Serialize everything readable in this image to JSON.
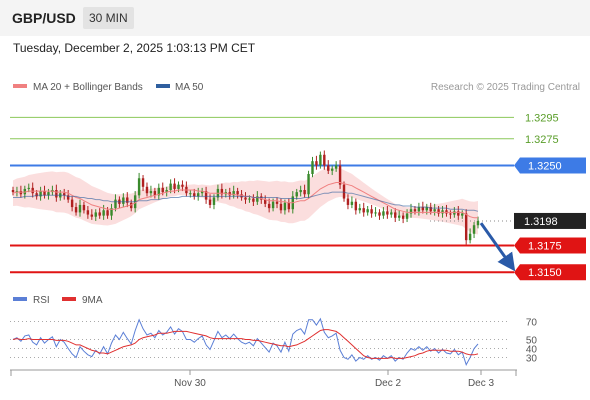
{
  "header": {
    "pair": "GBP/USD",
    "timeframe": "30 MIN"
  },
  "datetime": "Tuesday, December 2, 2025 1:03:13 PM CET",
  "legend": {
    "main": [
      {
        "label": "MA 20 + Bollinger Bands",
        "color": "#f08080"
      },
      {
        "label": "MA 50",
        "color": "#2f5f9f"
      }
    ],
    "rsi": [
      {
        "label": "RSI",
        "color": "#5b7fd6"
      },
      {
        "label": "9MA",
        "color": "#e03030"
      }
    ]
  },
  "credit": "Research © 2025 Trading Central",
  "chart_data": [
    {
      "type": "candlestick",
      "ylim": [
        1.3138,
        1.3316
      ],
      "levels": [
        {
          "label": "1.3295",
          "value": 1.3295,
          "color": "#8cc85a",
          "style": "resistance"
        },
        {
          "label": "1.3275",
          "value": 1.3275,
          "color": "#8cc85a",
          "style": "resistance"
        },
        {
          "label": "1.3250",
          "value": 1.325,
          "color": "#3d7be6",
          "style": "pivot"
        },
        {
          "label": "1.3198",
          "value": 1.3198,
          "color": "#222222",
          "style": "last"
        },
        {
          "label": "1.3175",
          "value": 1.3175,
          "color": "#e01414",
          "style": "support"
        },
        {
          "label": "1.3150",
          "value": 1.315,
          "color": "#e01414",
          "style": "support"
        }
      ],
      "x_ticks": [
        "Nov 30",
        "Dec 2",
        "Dec 3"
      ],
      "forecast": {
        "from": 1.3196,
        "to": 1.3152,
        "direction": "down"
      },
      "closes": [
        1.3225,
        1.3226,
        1.3223,
        1.3228,
        1.3229,
        1.3224,
        1.3221,
        1.3226,
        1.3222,
        1.3225,
        1.3227,
        1.322,
        1.3224,
        1.3222,
        1.3218,
        1.3211,
        1.3206,
        1.3213,
        1.3208,
        1.3204,
        1.3202,
        1.3206,
        1.3203,
        1.3208,
        1.3203,
        1.321,
        1.3218,
        1.3214,
        1.322,
        1.3215,
        1.321,
        1.3222,
        1.3238,
        1.323,
        1.3224,
        1.3226,
        1.3222,
        1.3229,
        1.3225,
        1.3227,
        1.3233,
        1.3228,
        1.3232,
        1.323,
        1.3224,
        1.3224,
        1.3221,
        1.3224,
        1.3226,
        1.3218,
        1.3213,
        1.322,
        1.3228,
        1.3223,
        1.3225,
        1.3222,
        1.3226,
        1.3223,
        1.322,
        1.3218,
        1.3219,
        1.3216,
        1.3221,
        1.3218,
        1.3214,
        1.321,
        1.3216,
        1.3214,
        1.3208,
        1.3215,
        1.3209,
        1.3221,
        1.3225,
        1.3227,
        1.3223,
        1.3242,
        1.3254,
        1.325,
        1.326,
        1.325,
        1.3245,
        1.3247,
        1.325,
        1.3232,
        1.3219,
        1.3213,
        1.3216,
        1.3208,
        1.321,
        1.3206,
        1.3209,
        1.3205,
        1.3206,
        1.3203,
        1.3207,
        1.3204,
        1.3206,
        1.3201,
        1.3203,
        1.32,
        1.3205,
        1.3209,
        1.3207,
        1.3211,
        1.3208,
        1.3211,
        1.3207,
        1.3209,
        1.3205,
        1.3208,
        1.3205,
        1.3204,
        1.3207,
        1.3203,
        1.3205,
        1.318,
        1.3186,
        1.3194,
        1.3198
      ],
      "ma20": [
        1.3224,
        1.3225,
        1.3225,
        1.3225,
        1.3226,
        1.3226,
        1.3226,
        1.3226,
        1.3226,
        1.3226,
        1.3226,
        1.3225,
        1.3225,
        1.3225,
        1.3224,
        1.3222,
        1.322,
        1.3219,
        1.3217,
        1.3215,
        1.3213,
        1.3212,
        1.3211,
        1.321,
        1.3209,
        1.3209,
        1.3209,
        1.321,
        1.3211,
        1.3212,
        1.3213,
        1.3215,
        1.3218,
        1.3219,
        1.322,
        1.3221,
        1.3222,
        1.3223,
        1.3224,
        1.3225,
        1.3226,
        1.3226,
        1.3227,
        1.3227,
        1.3227,
        1.3227,
        1.3227,
        1.3226,
        1.3226,
        1.3225,
        1.3224,
        1.3224,
        1.3224,
        1.3224,
        1.3224,
        1.3223,
        1.3223,
        1.3222,
        1.3222,
        1.3221,
        1.3221,
        1.322,
        1.322,
        1.3219,
        1.3218,
        1.3217,
        1.3217,
        1.3217,
        1.3216,
        1.3216,
        1.3215,
        1.3215,
        1.3216,
        1.3217,
        1.3217,
        1.3219,
        1.3222,
        1.3225,
        1.3228,
        1.323,
        1.3232,
        1.3233,
        1.3234,
        1.3234,
        1.3233,
        1.3232,
        1.3231,
        1.3229,
        1.3227,
        1.3225,
        1.3223,
        1.3221,
        1.3219,
        1.3217,
        1.3215,
        1.3213,
        1.3211,
        1.3209,
        1.3208,
        1.3207,
        1.3206,
        1.3206,
        1.3206,
        1.3206,
        1.3206,
        1.3206,
        1.3206,
        1.3206,
        1.3206,
        1.3206,
        1.3206,
        1.3206,
        1.3206,
        1.3206,
        1.3206,
        1.3204,
        1.3202,
        1.3201,
        1.3201
      ],
      "bb_width": 0.0012,
      "ma50": [
        1.322,
        1.322,
        1.322,
        1.3221,
        1.3221,
        1.3221,
        1.3222,
        1.3222,
        1.3222,
        1.3222,
        1.3222,
        1.3222,
        1.3222,
        1.3222,
        1.3221,
        1.3221,
        1.3221,
        1.322,
        1.322,
        1.3219,
        1.3219,
        1.3218,
        1.3218,
        1.3217,
        1.3217,
        1.3216,
        1.3216,
        1.3216,
        1.3216,
        1.3216,
        1.3216,
        1.3216,
        1.3217,
        1.3217,
        1.3217,
        1.3218,
        1.3218,
        1.3218,
        1.3219,
        1.3219,
        1.322,
        1.322,
        1.322,
        1.3221,
        1.3221,
        1.3221,
        1.3221,
        1.3221,
        1.3221,
        1.3221,
        1.3221,
        1.3221,
        1.3221,
        1.3221,
        1.3221,
        1.3221,
        1.3221,
        1.3221,
        1.3221,
        1.3221,
        1.3221,
        1.322,
        1.322,
        1.322,
        1.322,
        1.322,
        1.322,
        1.322,
        1.3219,
        1.3219,
        1.3219,
        1.3219,
        1.3219,
        1.3219,
        1.322,
        1.322,
        1.3221,
        1.3222,
        1.3223,
        1.3224,
        1.3224,
        1.3225,
        1.3225,
        1.3225,
        1.3225,
        1.3224,
        1.3224,
        1.3223,
        1.3222,
        1.3221,
        1.322,
        1.3219,
        1.3218,
        1.3217,
        1.3216,
        1.3215,
        1.3214,
        1.3213,
        1.3213,
        1.3212,
        1.3212,
        1.3212,
        1.3211,
        1.3211,
        1.3211,
        1.3211,
        1.321,
        1.321,
        1.321,
        1.321,
        1.321,
        1.3209,
        1.3209,
        1.3209,
        1.3209,
        1.3208,
        1.3208,
        1.3208,
        1.3207
      ]
    },
    {
      "type": "line",
      "name": "RSI",
      "ylim": [
        25,
        75
      ],
      "y_ticks": [
        70,
        50,
        40,
        30
      ],
      "rsi": [
        50,
        52,
        48,
        54,
        55,
        47,
        44,
        52,
        46,
        50,
        53,
        42,
        50,
        47,
        40,
        34,
        30,
        42,
        37,
        33,
        31,
        38,
        34,
        42,
        34,
        46,
        55,
        50,
        58,
        51,
        45,
        60,
        72,
        62,
        55,
        57,
        52,
        60,
        55,
        58,
        64,
        56,
        62,
        59,
        50,
        50,
        47,
        51,
        54,
        44,
        39,
        49,
        59,
        52,
        55,
        51,
        56,
        51,
        47,
        45,
        47,
        43,
        51,
        46,
        41,
        36,
        46,
        43,
        36,
        47,
        37,
        56,
        60,
        62,
        56,
        72,
        72,
        66,
        73,
        58,
        52,
        54,
        57,
        38,
        30,
        28,
        33,
        26,
        30,
        28,
        32,
        28,
        30,
        27,
        32,
        29,
        32,
        26,
        30,
        28,
        35,
        40,
        38,
        42,
        38,
        42,
        37,
        40,
        35,
        39,
        35,
        34,
        39,
        33,
        36,
        22,
        30,
        40,
        45
      ],
      "ma9": [
        50,
        51,
        50,
        50,
        51,
        50,
        50,
        50,
        50,
        50,
        50,
        49,
        49,
        49,
        48,
        46,
        44,
        44,
        42,
        40,
        38,
        37,
        35,
        35,
        34,
        36,
        38,
        40,
        42,
        43,
        44,
        46,
        50,
        52,
        53,
        54,
        55,
        57,
        57,
        57,
        58,
        59,
        59,
        59,
        59,
        58,
        57,
        56,
        55,
        54,
        52,
        51,
        51,
        51,
        51,
        51,
        51,
        51,
        51,
        50,
        50,
        49,
        49,
        48,
        47,
        46,
        45,
        44,
        43,
        43,
        42,
        43,
        44,
        46,
        48,
        51,
        54,
        57,
        60,
        61,
        61,
        60,
        59,
        56,
        52,
        48,
        44,
        40,
        36,
        32,
        30,
        29,
        29,
        29,
        29,
        29,
        30,
        29,
        29,
        29,
        30,
        31,
        32,
        34,
        35,
        37,
        38,
        38,
        38,
        38,
        38,
        37,
        37,
        37,
        36,
        34,
        33,
        33,
        34
      ]
    }
  ]
}
